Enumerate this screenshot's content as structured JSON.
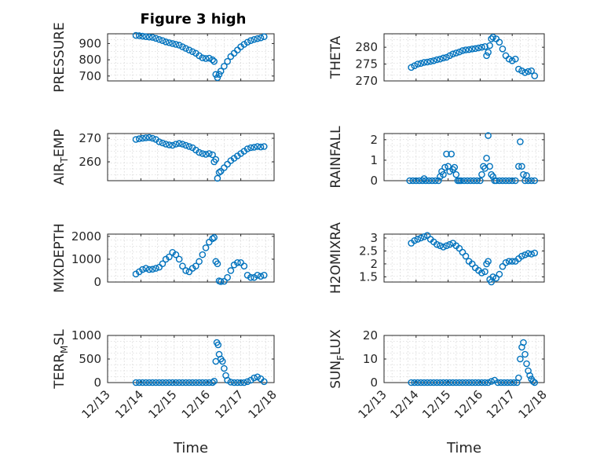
{
  "figure": {
    "title": "Figure 3 high",
    "accent_color": "#0072BD",
    "background": "#ffffff"
  },
  "chart_data": [
    {
      "type": "scatter",
      "ylabel": "PRESSURE",
      "title": "Figure 3 high",
      "xlim": [
        13.0,
        18.0
      ],
      "ylim": [
        670,
        960
      ],
      "yticks": [
        700,
        800,
        900
      ],
      "xticklabels": [],
      "xlabel": "",
      "grid": true,
      "x": [
        13.85,
        13.95,
        14.05,
        14.15,
        14.25,
        14.35,
        14.45,
        14.55,
        14.65,
        14.75,
        14.85,
        14.95,
        15.05,
        15.15,
        15.25,
        15.35,
        15.45,
        15.55,
        15.65,
        15.75,
        15.85,
        15.95,
        16.05,
        16.15,
        16.2,
        16.25,
        16.3,
        16.35,
        16.4,
        16.5,
        16.6,
        16.7,
        16.8,
        16.9,
        17.0,
        17.1,
        17.2,
        17.3,
        17.4,
        17.5,
        17.6,
        17.7
      ],
      "y": [
        950,
        948,
        945,
        942,
        940,
        938,
        932,
        925,
        918,
        910,
        905,
        900,
        895,
        890,
        880,
        870,
        860,
        850,
        840,
        825,
        812,
        808,
        810,
        800,
        790,
        710,
        690,
        710,
        730,
        760,
        790,
        820,
        840,
        860,
        880,
        895,
        908,
        918,
        925,
        930,
        935,
        942
      ]
    },
    {
      "type": "scatter",
      "ylabel": "THETA",
      "xlim": [
        13.0,
        18.0
      ],
      "ylim": [
        270,
        284
      ],
      "yticks": [
        270,
        275,
        280
      ],
      "xticklabels": [],
      "xlabel": "",
      "grid": true,
      "x": [
        13.85,
        13.95,
        14.05,
        14.15,
        14.25,
        14.35,
        14.45,
        14.55,
        14.65,
        14.75,
        14.85,
        14.95,
        15.05,
        15.15,
        15.25,
        15.35,
        15.45,
        15.55,
        15.65,
        15.75,
        15.85,
        15.95,
        16.05,
        16.15,
        16.2,
        16.25,
        16.3,
        16.35,
        16.4,
        16.5,
        16.6,
        16.7,
        16.8,
        16.9,
        17.0,
        17.1,
        17.2,
        17.3,
        17.4,
        17.5,
        17.6,
        17.7
      ],
      "y": [
        274,
        274.5,
        275,
        275.2,
        275.5,
        275.6,
        275.8,
        276,
        276.3,
        276.5,
        276.8,
        277,
        277.5,
        278,
        278.3,
        278.6,
        279,
        279.2,
        279.3,
        279.5,
        279.6,
        279.8,
        280,
        280.2,
        277.5,
        278.5,
        280.5,
        282.5,
        283,
        282.5,
        281.5,
        279.5,
        277.5,
        276.5,
        276,
        276.5,
        273.5,
        273,
        272.5,
        272.8,
        273,
        271.5
      ]
    },
    {
      "type": "scatter",
      "ylabel": "AIR_TEMP",
      "xlim": [
        13.0,
        18.0
      ],
      "ylim": [
        252,
        272
      ],
      "yticks": [
        260,
        270
      ],
      "xticklabels": [],
      "xlabel": "",
      "grid": true,
      "x": [
        13.85,
        13.95,
        14.05,
        14.15,
        14.25,
        14.35,
        14.45,
        14.55,
        14.65,
        14.75,
        14.85,
        14.95,
        15.05,
        15.15,
        15.25,
        15.35,
        15.45,
        15.55,
        15.65,
        15.75,
        15.85,
        15.95,
        16.05,
        16.15,
        16.2,
        16.25,
        16.3,
        16.35,
        16.4,
        16.5,
        16.6,
        16.7,
        16.8,
        16.9,
        17.0,
        17.1,
        17.2,
        17.3,
        17.4,
        17.5,
        17.6,
        17.7
      ],
      "y": [
        269.5,
        269.8,
        270,
        270.2,
        270.3,
        270,
        269.5,
        268.5,
        268,
        267.5,
        267.2,
        267,
        267.5,
        267.8,
        267.5,
        267,
        266.5,
        266,
        265,
        264,
        263.5,
        263.2,
        263.5,
        263,
        260,
        261,
        253,
        255.5,
        256,
        257.5,
        259,
        260.5,
        261.5,
        262.5,
        263.5,
        264.5,
        265.5,
        266,
        266.2,
        266.5,
        266.3,
        266.5
      ]
    },
    {
      "type": "scatter",
      "ylabel": "RAINFALL",
      "xlim": [
        13.0,
        18.0
      ],
      "ylim": [
        0,
        2.3
      ],
      "yticks": [
        0,
        1,
        2
      ],
      "xticklabels": [],
      "xlabel": "",
      "grid": true,
      "x": [
        13.8,
        13.9,
        14.0,
        14.1,
        14.2,
        14.25,
        14.3,
        14.4,
        14.5,
        14.6,
        14.7,
        14.75,
        14.8,
        14.85,
        14.9,
        14.95,
        15.0,
        15.05,
        15.1,
        15.15,
        15.2,
        15.25,
        15.3,
        15.35,
        15.4,
        15.5,
        15.6,
        15.7,
        15.8,
        15.9,
        16.0,
        16.05,
        16.1,
        16.15,
        16.2,
        16.25,
        16.3,
        16.35,
        16.4,
        16.45,
        16.5,
        16.6,
        16.7,
        16.8,
        16.9,
        17.0,
        17.1,
        17.2,
        17.25,
        17.3,
        17.35,
        17.4,
        17.45,
        17.5,
        17.6,
        17.7
      ],
      "y": [
        0,
        0,
        0,
        0,
        0,
        0.1,
        0,
        0,
        0,
        0,
        0,
        0.2,
        0.45,
        0.3,
        0.65,
        1.3,
        0.7,
        0.45,
        1.3,
        0.55,
        0.65,
        0.3,
        0,
        0,
        0,
        0,
        0,
        0,
        0,
        0,
        0,
        0.3,
        0.7,
        0.6,
        1.1,
        2.2,
        0.7,
        0.3,
        0.2,
        0,
        0,
        0,
        0,
        0,
        0,
        0,
        0,
        0.7,
        1.9,
        0.7,
        0.3,
        0,
        0.25,
        0,
        0,
        0
      ]
    },
    {
      "type": "scatter",
      "ylabel": "MIXDEPTH",
      "xlim": [
        13.0,
        18.0
      ],
      "ylim": [
        0,
        2100
      ],
      "yticks": [
        0,
        1000,
        2000
      ],
      "xticklabels": [],
      "xlabel": "",
      "grid": true,
      "x": [
        13.85,
        13.95,
        14.05,
        14.15,
        14.25,
        14.35,
        14.45,
        14.55,
        14.65,
        14.75,
        14.85,
        14.95,
        15.05,
        15.15,
        15.25,
        15.35,
        15.45,
        15.55,
        15.65,
        15.75,
        15.85,
        15.95,
        16.05,
        16.15,
        16.2,
        16.25,
        16.3,
        16.35,
        16.4,
        16.5,
        16.6,
        16.7,
        16.8,
        16.9,
        17.0,
        17.1,
        17.2,
        17.3,
        17.4,
        17.5,
        17.6,
        17.7
      ],
      "y": [
        350,
        450,
        550,
        600,
        550,
        560,
        600,
        650,
        800,
        1000,
        1100,
        1300,
        1200,
        1000,
        700,
        500,
        450,
        600,
        700,
        900,
        1200,
        1500,
        1750,
        1900,
        1950,
        900,
        800,
        50,
        20,
        30,
        200,
        500,
        750,
        850,
        850,
        700,
        300,
        200,
        200,
        300,
        250,
        300
      ]
    },
    {
      "type": "scatter",
      "ylabel": "H2OMIXRA",
      "xlim": [
        13.0,
        18.0
      ],
      "ylim": [
        1.3,
        3.15
      ],
      "yticks": [
        1.5,
        2,
        2.5,
        3
      ],
      "xticklabels": [],
      "xlabel": "",
      "grid": true,
      "x": [
        13.85,
        13.95,
        14.05,
        14.15,
        14.25,
        14.35,
        14.45,
        14.55,
        14.65,
        14.75,
        14.85,
        14.95,
        15.05,
        15.15,
        15.25,
        15.35,
        15.45,
        15.55,
        15.65,
        15.75,
        15.85,
        15.95,
        16.05,
        16.15,
        16.2,
        16.25,
        16.3,
        16.35,
        16.4,
        16.5,
        16.6,
        16.7,
        16.8,
        16.9,
        17.0,
        17.1,
        17.2,
        17.3,
        17.4,
        17.5,
        17.6,
        17.7
      ],
      "y": [
        2.8,
        2.9,
        2.95,
        3.0,
        3.05,
        3.1,
        2.95,
        2.85,
        2.75,
        2.7,
        2.65,
        2.7,
        2.75,
        2.8,
        2.7,
        2.6,
        2.45,
        2.3,
        2.1,
        2.0,
        1.85,
        1.75,
        1.65,
        1.7,
        2.0,
        2.1,
        1.4,
        1.3,
        1.5,
        1.45,
        1.6,
        1.9,
        2.05,
        2.1,
        2.1,
        2.1,
        2.2,
        2.3,
        2.35,
        2.4,
        2.38,
        2.42
      ]
    },
    {
      "type": "scatter",
      "ylabel": "TERR_MSL",
      "xlim": [
        13.0,
        18.0
      ],
      "ylim": [
        0,
        1000
      ],
      "yticks": [
        0,
        500,
        1000
      ],
      "xticklabels": [
        "12/13",
        "12/14",
        "12/15",
        "12/16",
        "12/17",
        "12/18"
      ],
      "xticks": [
        13,
        14,
        15,
        16,
        17,
        18
      ],
      "xlabel": "Time",
      "grid": true,
      "x": [
        13.85,
        13.95,
        14.05,
        14.15,
        14.25,
        14.35,
        14.45,
        14.55,
        14.65,
        14.75,
        14.85,
        14.95,
        15.05,
        15.15,
        15.25,
        15.35,
        15.45,
        15.55,
        15.65,
        15.75,
        15.85,
        15.95,
        16.05,
        16.15,
        16.2,
        16.25,
        16.28,
        16.32,
        16.35,
        16.4,
        16.45,
        16.5,
        16.55,
        16.6,
        16.7,
        16.8,
        16.9,
        17.0,
        17.1,
        17.2,
        17.3,
        17.4,
        17.5,
        17.6,
        17.7
      ],
      "y": [
        0,
        0,
        0,
        0,
        0,
        0,
        0,
        0,
        0,
        0,
        0,
        0,
        0,
        0,
        0,
        0,
        0,
        0,
        0,
        0,
        0,
        0,
        0,
        0,
        30,
        450,
        850,
        800,
        600,
        500,
        450,
        300,
        150,
        50,
        10,
        0,
        0,
        0,
        0,
        20,
        50,
        100,
        120,
        80,
        20
      ]
    },
    {
      "type": "scatter",
      "ylabel": "SUN_FLUX",
      "xlim": [
        13.0,
        18.0
      ],
      "ylim": [
        0,
        20
      ],
      "yticks": [
        0,
        10,
        20
      ],
      "xticklabels": [
        "12/13",
        "12/14",
        "12/15",
        "12/16",
        "12/17",
        "12/18"
      ],
      "xticks": [
        13,
        14,
        15,
        16,
        17,
        18
      ],
      "xlabel": "Time",
      "grid": true,
      "x": [
        13.85,
        13.95,
        14.05,
        14.15,
        14.25,
        14.35,
        14.45,
        14.55,
        14.65,
        14.75,
        14.85,
        14.95,
        15.05,
        15.15,
        15.25,
        15.35,
        15.45,
        15.55,
        15.65,
        15.75,
        15.85,
        15.95,
        16.05,
        16.15,
        16.25,
        16.35,
        16.45,
        16.55,
        16.65,
        16.75,
        16.85,
        16.95,
        17.05,
        17.15,
        17.2,
        17.25,
        17.3,
        17.35,
        17.4,
        17.45,
        17.5,
        17.55,
        17.6,
        17.65,
        17.7
      ],
      "y": [
        0,
        0,
        0,
        0,
        0,
        0,
        0,
        0,
        0,
        0,
        0,
        0,
        0,
        0,
        0,
        0,
        0,
        0,
        0,
        0,
        0,
        0,
        0,
        0,
        0,
        0.5,
        1,
        0,
        0,
        0,
        0,
        0,
        0,
        0,
        2,
        10,
        15,
        17,
        12,
        8,
        5,
        3,
        1.5,
        0.5,
        0
      ]
    }
  ]
}
